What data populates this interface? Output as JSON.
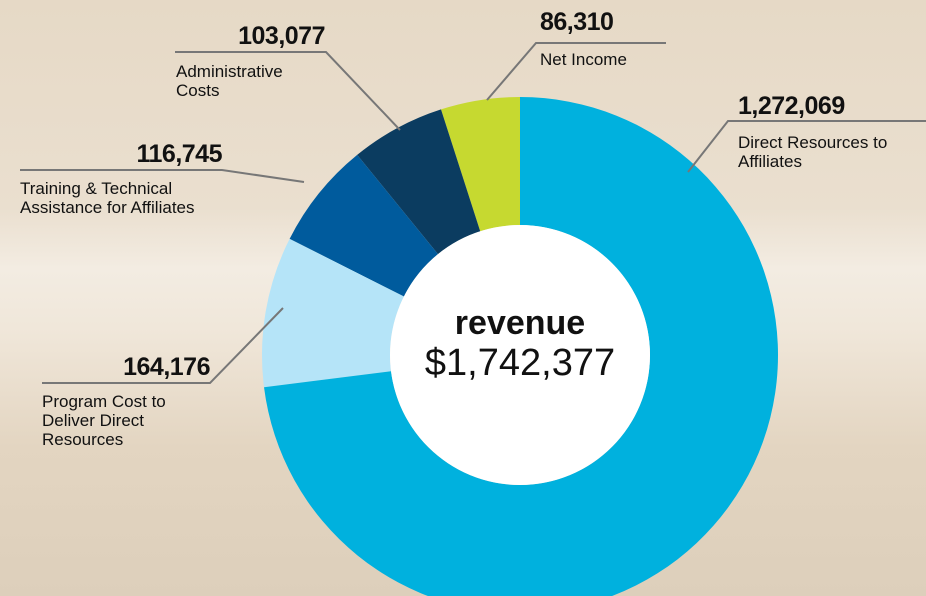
{
  "chart_data": {
    "type": "donut",
    "center_title": "revenue",
    "total": 1742377,
    "total_label": "$1,742,377",
    "categories": [
      "Direct Resources to Affiliates",
      "Program Cost to Deliver Direct Resources",
      "Training & Technical Assistance for Affiliates",
      "Administrative Costs",
      "Net Income"
    ],
    "values": [
      1272069,
      164176,
      116745,
      103077,
      86310
    ],
    "value_labels": [
      "1,272,069",
      "164,176",
      "116,745",
      "103,077",
      "86,310"
    ],
    "colors": [
      "#00b1de",
      "#b5e4f8",
      "#005b9d",
      "#0b3c60",
      "#c6d930"
    ]
  }
}
